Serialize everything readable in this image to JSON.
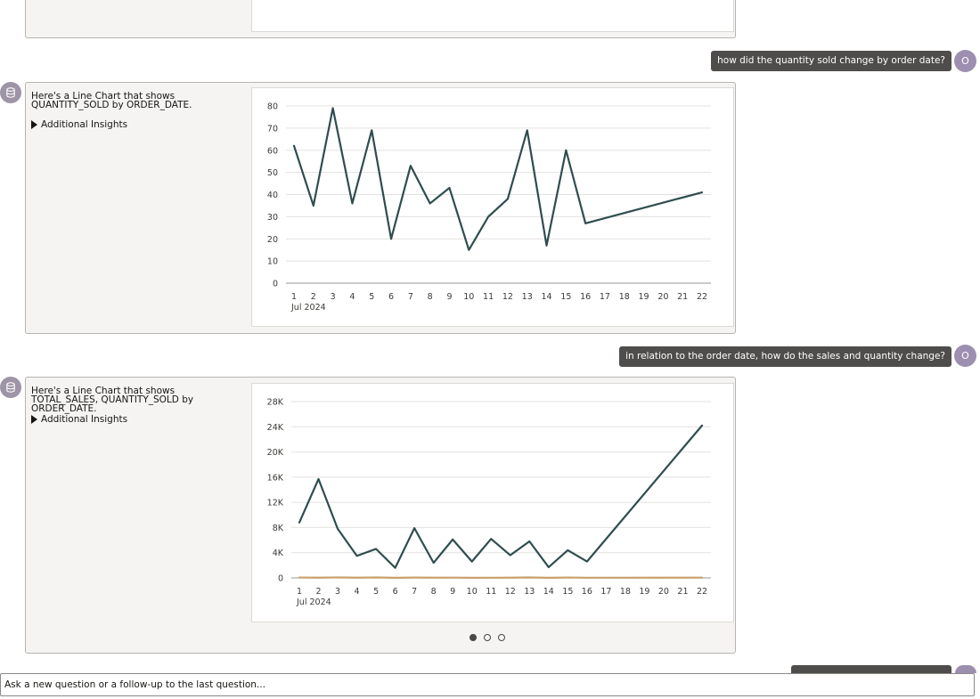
{
  "conversation": {
    "messages": [
      {
        "role": "user",
        "text": "how did the quantity sold change by order date?",
        "avatar_initial": "O"
      },
      {
        "role": "assistant",
        "summary": "Here's a Line Chart that shows QUANTITY_SOLD by ORDER_DATE.",
        "insights_label": "Additional Insights"
      },
      {
        "role": "user",
        "text": "in relation to the order date, how do the sales and quantity change?",
        "avatar_initial": "O"
      },
      {
        "role": "assistant",
        "summary": "Here's a Line Chart that shows TOTAL_SALES, QUANTITY_SOLD by ORDER_DATE.",
        "insights_label": "Additional Insights"
      }
    ]
  },
  "input": {
    "placeholder": "Ask a new question or a follow-up to the last question..."
  },
  "pagination": {
    "count": 3,
    "active_index": 0
  },
  "icons": {
    "assistant_avatar": "database-icon",
    "disclosure": "triangle-right-icon"
  },
  "colors": {
    "series_primary": "#2f4d4f",
    "series_secondary": "#c9a06a",
    "bubble": "#4f4d4b",
    "avatar": "#9d8fb0"
  },
  "chart_data": [
    {
      "type": "line",
      "x": [
        "1",
        "2",
        "3",
        "4",
        "5",
        "6",
        "7",
        "8",
        "9",
        "10",
        "11",
        "12",
        "13",
        "14",
        "15",
        "16",
        "22"
      ],
      "x_ticks": [
        "1",
        "2",
        "3",
        "4",
        "5",
        "6",
        "7",
        "8",
        "9",
        "10",
        "11",
        "12",
        "13",
        "14",
        "15",
        "16",
        "17",
        "18",
        "19",
        "20",
        "21",
        "22"
      ],
      "x_sublabel": "Jul 2024",
      "y_ticks": [
        "0",
        "10",
        "20",
        "30",
        "40",
        "50",
        "60",
        "70",
        "80"
      ],
      "ylim": [
        0,
        80
      ],
      "series": [
        {
          "values": [
            62,
            35,
            79,
            36,
            69,
            20,
            53,
            36,
            43,
            15,
            30,
            38,
            69,
            17,
            60,
            27,
            41
          ]
        }
      ],
      "grid": true,
      "legend": "none"
    },
    {
      "type": "line",
      "x": [
        "1",
        "2",
        "3",
        "4",
        "5",
        "6",
        "7",
        "8",
        "9",
        "10",
        "11",
        "12",
        "13",
        "14",
        "15",
        "16",
        "22"
      ],
      "x_ticks": [
        "1",
        "2",
        "3",
        "4",
        "5",
        "6",
        "7",
        "8",
        "9",
        "10",
        "11",
        "12",
        "13",
        "14",
        "15",
        "16",
        "17",
        "18",
        "19",
        "20",
        "21",
        "22"
      ],
      "x_sublabel": "Jul 2024",
      "y_ticks": [
        "0",
        "4K",
        "8K",
        "12K",
        "16K",
        "20K",
        "24K",
        "28K"
      ],
      "ylim": [
        0,
        28000
      ],
      "series": [
        {
          "values": [
            8800,
            15700,
            7800,
            3500,
            4600,
            1600,
            7900,
            2400,
            6100,
            2600,
            6200,
            3600,
            5800,
            1700,
            4400,
            2600,
            24200
          ]
        },
        {
          "values": [
            62,
            35,
            79,
            36,
            69,
            20,
            53,
            36,
            43,
            15,
            30,
            38,
            69,
            17,
            60,
            27,
            41
          ]
        }
      ],
      "grid": true,
      "legend": "none"
    }
  ]
}
